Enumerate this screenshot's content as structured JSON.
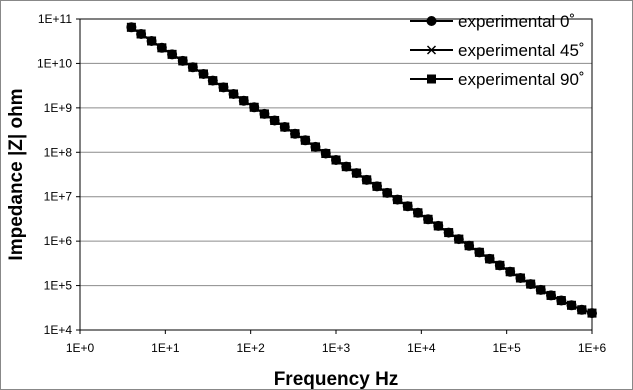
{
  "chart_data": {
    "type": "line",
    "title": "",
    "xlabel": "Frequency Hz",
    "ylabel": "Impedance |Z| ohm",
    "x_scale": "log",
    "y_scale": "log",
    "xlim": [
      1,
      1000000
    ],
    "ylim": [
      10000,
      100000000000
    ],
    "x_ticks": [
      "1E+0",
      "1E+1",
      "1E+2",
      "1E+3",
      "1E+4",
      "1E+5",
      "1E+6"
    ],
    "y_ticks": [
      "1E+4",
      "1E+5",
      "1E+6",
      "1E+7",
      "1E+8",
      "1E+9",
      "1E+10",
      "1E+11"
    ],
    "grid": "horizontal",
    "legend_position": "top-right",
    "x": [
      4,
      5.2,
      6.9,
      9.1,
      12,
      16,
      21,
      28,
      36,
      48,
      63,
      83,
      110,
      145,
      191,
      251,
      331,
      437,
      575,
      759,
      1000,
      1320,
      1740,
      2290,
      3020,
      3980,
      5250,
      6920,
      9120,
      12000,
      15800,
      20900,
      27500,
      36300,
      47900,
      63100,
      83200,
      110000,
      145000,
      191000,
      251000,
      331000,
      437000,
      575000,
      759000,
      1000000
    ],
    "series": [
      {
        "name": "experimental 0˚",
        "marker": "circle",
        "color": "#000000",
        "values": [
          65000000000,
          46000000000,
          32000000000,
          22500000000,
          16000000000,
          11400000000,
          8200000000,
          5800000000,
          4100000000,
          2900000000,
          2050000000,
          1450000000,
          1030000000,
          730000000,
          520000000,
          370000000,
          262000000,
          186000000,
          132000000,
          94000000,
          67000000,
          47500000,
          34000000,
          24000000,
          17100000,
          12200000,
          8600000,
          6100000,
          4350000,
          3100000,
          2200000,
          1560000,
          1110000,
          790000,
          560000,
          400000,
          285000,
          205000,
          148000,
          108000,
          80000,
          60000,
          46000,
          36000,
          28500,
          24000
        ]
      },
      {
        "name": "experimental 45˚",
        "marker": "x",
        "color": "#000000",
        "values": [
          65000000000,
          46000000000,
          32000000000,
          22500000000,
          16000000000,
          11400000000,
          8200000000,
          5800000000,
          4100000000,
          2900000000,
          2050000000,
          1450000000,
          1030000000,
          730000000,
          520000000,
          370000000,
          262000000,
          186000000,
          132000000,
          94000000,
          67000000,
          47500000,
          34000000,
          24000000,
          17100000,
          12200000,
          8600000,
          6100000,
          4350000,
          3100000,
          2200000,
          1560000,
          1110000,
          790000,
          560000,
          400000,
          285000,
          205000,
          148000,
          108000,
          80000,
          60000,
          46000,
          36000,
          28500,
          24000
        ]
      },
      {
        "name": "experimental 90˚",
        "marker": "square",
        "color": "#000000",
        "values": [
          65000000000,
          46000000000,
          32000000000,
          22500000000,
          16000000000,
          11400000000,
          8200000000,
          5800000000,
          4100000000,
          2900000000,
          2050000000,
          1450000000,
          1030000000,
          730000000,
          520000000,
          370000000,
          262000000,
          186000000,
          132000000,
          94000000,
          67000000,
          47500000,
          34000000,
          24000000,
          17100000,
          12200000,
          8600000,
          6100000,
          4350000,
          3100000,
          2200000,
          1560000,
          1110000,
          790000,
          560000,
          400000,
          285000,
          205000,
          148000,
          108000,
          80000,
          60000,
          46000,
          36000,
          28500,
          24000
        ]
      }
    ]
  }
}
